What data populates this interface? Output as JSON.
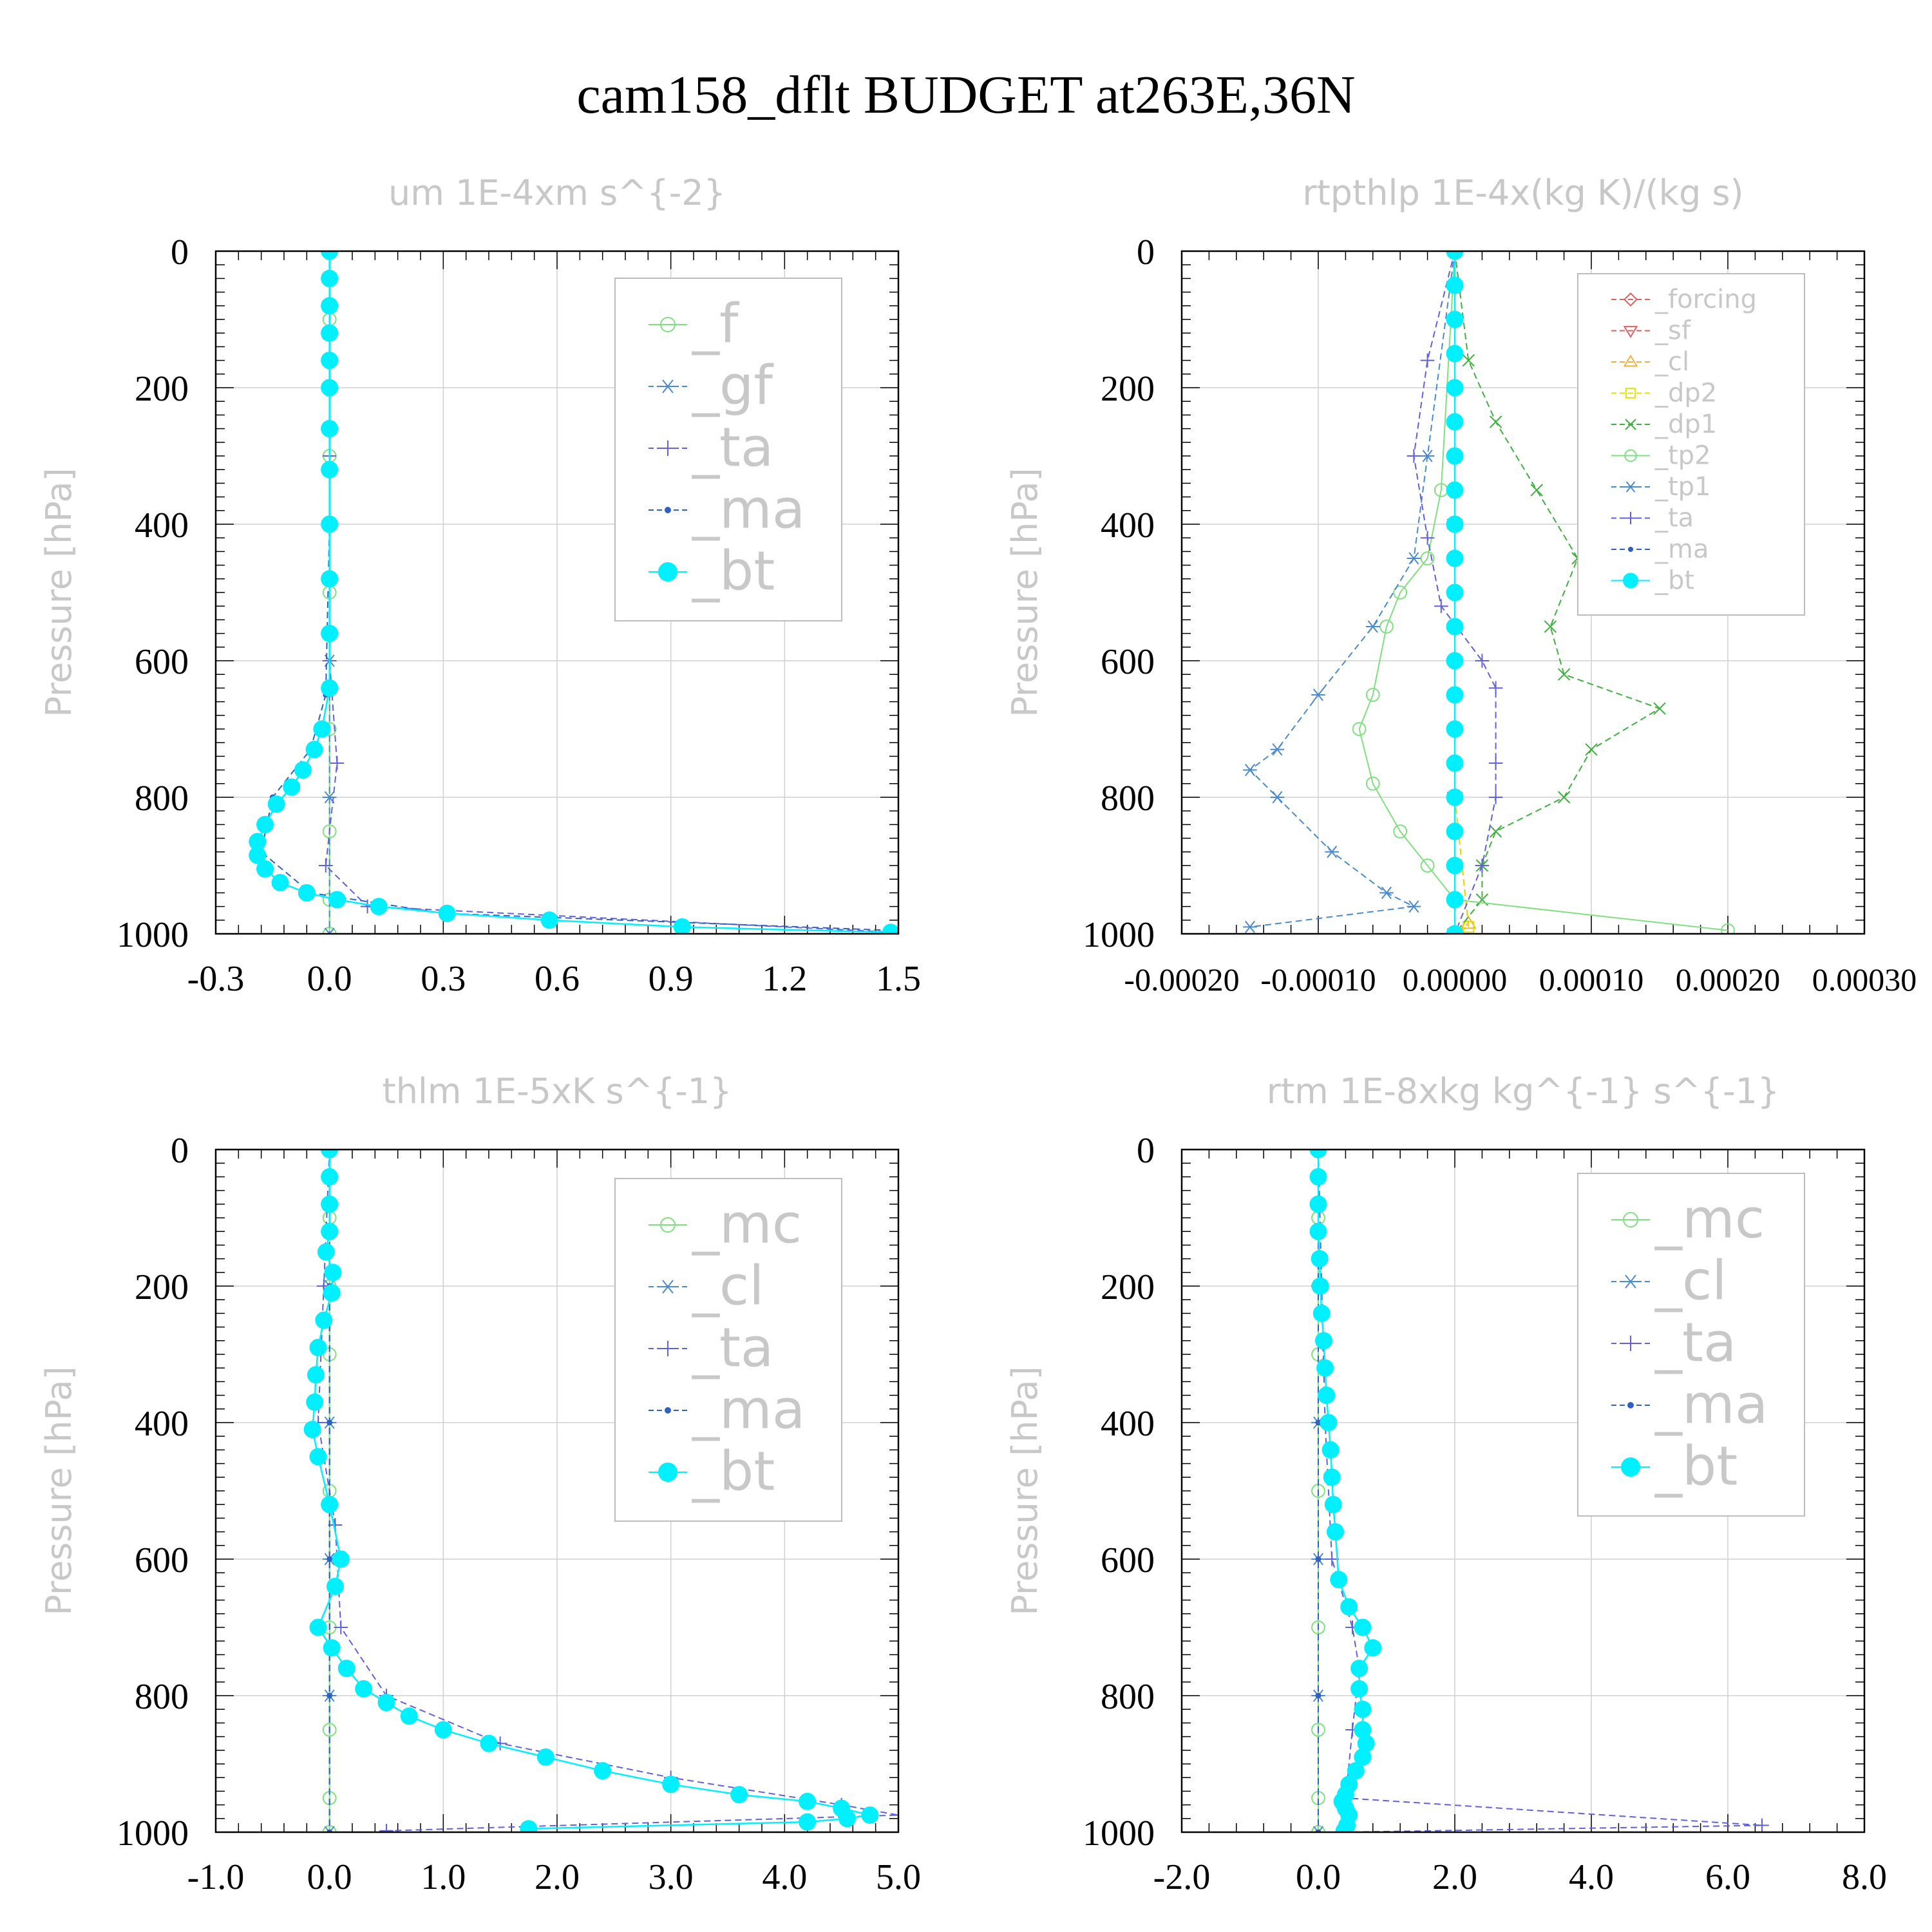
{
  "title": "cam158_dflt  BUDGET at263E,36N",
  "chart_data": [
    {
      "type": "line",
      "title": "um   1E-4xm s^{-2}",
      "ylabel": "Pressure [hPa]",
      "xlim": [
        -0.3,
        1.5
      ],
      "ylim": [
        1000,
        0
      ],
      "xticks": [
        "-0.3",
        "0.0",
        "0.3",
        "0.6",
        "0.9",
        "1.2",
        "1.5"
      ],
      "yticks": [
        "0",
        "200",
        "400",
        "600",
        "800",
        "1000"
      ],
      "legend": "top-right",
      "series": [
        {
          "name": "_f",
          "color": "#7fe07f",
          "marker": "circle",
          "x": [
            0,
            0,
            0,
            0,
            0,
            0,
            0,
            0,
            0
          ],
          "y": [
            0,
            100,
            200,
            300,
            500,
            700,
            850,
            950,
            1000
          ]
        },
        {
          "name": "_gf",
          "color": "#4a8ad0",
          "marker": "star",
          "x": [
            0,
            0,
            0,
            0,
            0,
            0
          ],
          "y": [
            0,
            200,
            400,
            600,
            800,
            1000
          ]
        },
        {
          "name": "_ta",
          "color": "#6060e0",
          "marker": "plus",
          "x": [
            0,
            0,
            0,
            0.02,
            -0.01,
            0.1,
            1.5
          ],
          "y": [
            0,
            300,
            600,
            750,
            900,
            960,
            998
          ]
        },
        {
          "name": "_ma",
          "color": "#3060c0",
          "marker": "dot",
          "x": [
            0,
            0,
            -0.01,
            -0.05,
            -0.15,
            -0.18,
            -0.05,
            0.3,
            1.48
          ],
          "y": [
            0,
            400,
            650,
            730,
            800,
            880,
            940,
            970,
            995
          ]
        },
        {
          "name": "_bt",
          "color": "#00f0ff",
          "marker": "disk",
          "x": [
            0,
            0,
            0,
            0,
            0,
            0,
            0,
            0,
            0,
            0,
            0,
            0,
            -0.02,
            -0.04,
            -0.07,
            -0.1,
            -0.14,
            -0.17,
            -0.19,
            -0.19,
            -0.17,
            -0.13,
            -0.06,
            0.02,
            0.13,
            0.31,
            0.58,
            0.93,
            1.48
          ],
          "y": [
            0,
            40,
            80,
            120,
            160,
            200,
            260,
            320,
            400,
            480,
            560,
            640,
            700,
            730,
            760,
            785,
            810,
            840,
            865,
            885,
            905,
            925,
            940,
            950,
            960,
            970,
            980,
            990,
            998
          ]
        }
      ]
    },
    {
      "type": "line",
      "title": "rtpthlp   1E-4x(kg K)/(kg s)",
      "ylabel": "Pressure [hPa]",
      "xlim": [
        -0.0002,
        0.0003
      ],
      "ylim": [
        1000,
        0
      ],
      "xticks": [
        "-0.00020",
        "-0.00010",
        "0.00000",
        "0.00010",
        "0.00020",
        "0.00030"
      ],
      "yticks": [
        "0",
        "200",
        "400",
        "600",
        "800",
        "1000"
      ],
      "legend": "top-right",
      "series": [
        {
          "name": "_forcing",
          "color": "#e06060",
          "marker": "diamond",
          "x": [
            0,
            0,
            0,
            0,
            0,
            0
          ],
          "y": [
            0,
            200,
            400,
            600,
            800,
            1000
          ]
        },
        {
          "name": "_sf",
          "color": "#e06060",
          "marker": "tri-down",
          "x": [
            0,
            0,
            0,
            0
          ],
          "y": [
            0,
            400,
            800,
            1000
          ]
        },
        {
          "name": "_cl",
          "color": "#f0b040",
          "marker": "tri-up",
          "x": [
            0,
            0,
            0,
            1e-05,
            0
          ],
          "y": [
            0,
            400,
            800,
            985,
            1000
          ]
        },
        {
          "name": "_dp2",
          "color": "#e0e000",
          "marker": "square",
          "x": [
            0,
            0,
            0,
            1e-05,
            0
          ],
          "y": [
            0,
            400,
            800,
            990,
            1000
          ]
        },
        {
          "name": "_dp1",
          "color": "#40b040",
          "marker": "cross",
          "x": [
            0,
            1e-05,
            3e-05,
            6e-05,
            9e-05,
            7e-05,
            8e-05,
            0.00015,
            0.0001,
            8e-05,
            3e-05,
            2e-05,
            2e-05,
            0
          ],
          "y": [
            0,
            160,
            250,
            350,
            450,
            550,
            620,
            670,
            730,
            800,
            850,
            900,
            950,
            1000
          ]
        },
        {
          "name": "_tp2",
          "color": "#7fe07f",
          "marker": "circle",
          "x": [
            0,
            -1e-05,
            -2e-05,
            -4e-05,
            -5e-05,
            -6e-05,
            -7e-05,
            -6e-05,
            -4e-05,
            -2e-05,
            0,
            0.0002
          ],
          "y": [
            0,
            350,
            450,
            500,
            550,
            650,
            700,
            780,
            850,
            900,
            950,
            995
          ]
        },
        {
          "name": "_tp1",
          "color": "#4a8ad0",
          "marker": "star",
          "x": [
            0,
            -2e-05,
            -3e-05,
            -6e-05,
            -0.0001,
            -0.00013,
            -0.00015,
            -0.00013,
            -9e-05,
            -5e-05,
            -3e-05,
            -0.00015
          ],
          "y": [
            0,
            300,
            450,
            550,
            650,
            730,
            760,
            800,
            880,
            940,
            960,
            990
          ]
        },
        {
          "name": "_ta",
          "color": "#6060e0",
          "marker": "plus",
          "x": [
            0,
            -2e-05,
            -3e-05,
            -2e-05,
            -1e-05,
            2e-05,
            3e-05,
            3e-05,
            3e-05,
            2e-05,
            0
          ],
          "y": [
            0,
            160,
            300,
            420,
            520,
            600,
            640,
            750,
            800,
            900,
            1000
          ]
        },
        {
          "name": "_ma",
          "color": "#3060c0",
          "marker": "dot",
          "x": [
            0,
            0,
            0,
            0,
            0,
            0
          ],
          "y": [
            0,
            200,
            400,
            600,
            800,
            1000
          ]
        },
        {
          "name": "_bt",
          "color": "#00f0ff",
          "marker": "disk",
          "x": [
            0,
            0,
            0,
            0,
            0,
            0,
            0,
            0,
            0,
            0,
            0,
            0,
            0,
            0,
            0,
            0,
            0,
            0,
            0,
            0,
            0
          ],
          "y": [
            0,
            50,
            100,
            150,
            200,
            250,
            300,
            350,
            400,
            450,
            500,
            550,
            600,
            650,
            700,
            750,
            800,
            850,
            900,
            950,
            1000
          ]
        }
      ]
    },
    {
      "type": "line",
      "title": "thlm   1E-5xK s^{-1}",
      "ylabel": "Pressure [hPa]",
      "xlim": [
        -1.0,
        5.0
      ],
      "ylim": [
        1000,
        0
      ],
      "xticks": [
        "-1.0",
        "0.0",
        "1.0",
        "2.0",
        "3.0",
        "4.0",
        "5.0"
      ],
      "yticks": [
        "0",
        "200",
        "400",
        "600",
        "800",
        "1000"
      ],
      "legend": "top-right",
      "series": [
        {
          "name": "_mc",
          "color": "#7fe07f",
          "marker": "circle",
          "x": [
            0,
            0,
            0,
            0,
            0,
            0,
            0,
            0,
            0
          ],
          "y": [
            0,
            100,
            200,
            300,
            500,
            700,
            850,
            950,
            1000
          ]
        },
        {
          "name": "_cl",
          "color": "#4a8ad0",
          "marker": "star",
          "x": [
            0,
            0,
            0,
            0,
            0,
            0
          ],
          "y": [
            0,
            200,
            400,
            600,
            800,
            1000
          ]
        },
        {
          "name": "_ta",
          "color": "#6060e0",
          "marker": "plus",
          "x": [
            0,
            -0.05,
            -0.1,
            0.05,
            0.1,
            0.5,
            1.5,
            3.0,
            4.5,
            5.0,
            0.5
          ],
          "y": [
            0,
            200,
            400,
            550,
            700,
            800,
            870,
            920,
            960,
            975,
            998
          ]
        },
        {
          "name": "_ma",
          "color": "#3060c0",
          "marker": "dot",
          "x": [
            0,
            0,
            0,
            0,
            0,
            0
          ],
          "y": [
            0,
            200,
            400,
            600,
            800,
            1000
          ]
        },
        {
          "name": "_bt",
          "color": "#00f0ff",
          "marker": "disk",
          "x": [
            0,
            0,
            0,
            0,
            -0.03,
            0.03,
            0.02,
            -0.05,
            -0.1,
            -0.12,
            -0.13,
            -0.15,
            -0.1,
            0,
            0.1,
            0.05,
            -0.1,
            0.02,
            0.15,
            0.3,
            0.5,
            0.7,
            1.0,
            1.4,
            1.9,
            2.4,
            3.0,
            3.6,
            4.2,
            4.5,
            4.75,
            4.55,
            4.2,
            1.75
          ],
          "y": [
            0,
            40,
            80,
            120,
            150,
            180,
            210,
            250,
            290,
            330,
            370,
            410,
            450,
            520,
            600,
            640,
            700,
            730,
            760,
            790,
            810,
            830,
            850,
            870,
            890,
            910,
            930,
            945,
            955,
            965,
            975,
            980,
            985,
            995
          ]
        }
      ]
    },
    {
      "type": "line",
      "title": "rtm   1E-8xkg kg^{-1} s^{-1}",
      "ylabel": "Pressure [hPa]",
      "xlim": [
        -2.0,
        8.0
      ],
      "ylim": [
        1000,
        0
      ],
      "xticks": [
        "-2.0",
        "0.0",
        "2.0",
        "4.0",
        "6.0",
        "8.0"
      ],
      "yticks": [
        "0",
        "200",
        "400",
        "600",
        "800",
        "1000"
      ],
      "legend": "top-right",
      "series": [
        {
          "name": "_mc",
          "color": "#7fe07f",
          "marker": "circle",
          "x": [
            0,
            0,
            0,
            0,
            0,
            0,
            0,
            0,
            0
          ],
          "y": [
            0,
            100,
            200,
            300,
            500,
            700,
            850,
            950,
            1000
          ]
        },
        {
          "name": "_cl",
          "color": "#4a8ad0",
          "marker": "star",
          "x": [
            0,
            0,
            0,
            0,
            0,
            0
          ],
          "y": [
            0,
            200,
            400,
            600,
            800,
            1000
          ]
        },
        {
          "name": "_ta",
          "color": "#6060e0",
          "marker": "plus",
          "x": [
            0,
            0.05,
            0.1,
            0.2,
            0.5,
            0.6,
            0.5,
            0.4,
            6.5,
            0.4
          ],
          "y": [
            0,
            200,
            400,
            600,
            700,
            760,
            850,
            950,
            990,
            1000
          ]
        },
        {
          "name": "_ma",
          "color": "#3060c0",
          "marker": "dot",
          "x": [
            0,
            0,
            0,
            0,
            0,
            0
          ],
          "y": [
            0,
            200,
            400,
            600,
            800,
            1000
          ]
        },
        {
          "name": "_bt",
          "color": "#00f0ff",
          "marker": "disk",
          "x": [
            0,
            0,
            0,
            0,
            0.02,
            0.03,
            0.05,
            0.08,
            0.1,
            0.12,
            0.15,
            0.18,
            0.2,
            0.22,
            0.25,
            0.3,
            0.45,
            0.65,
            0.8,
            0.6,
            0.6,
            0.65,
            0.65,
            0.7,
            0.65,
            0.55,
            0.45,
            0.4,
            0.35,
            0.4,
            0.45,
            0.42,
            0.38
          ],
          "y": [
            0,
            40,
            80,
            120,
            160,
            200,
            240,
            280,
            320,
            360,
            400,
            440,
            480,
            520,
            560,
            630,
            670,
            700,
            730,
            760,
            790,
            820,
            850,
            870,
            890,
            910,
            930,
            945,
            955,
            965,
            975,
            990,
            998
          ]
        }
      ]
    }
  ]
}
